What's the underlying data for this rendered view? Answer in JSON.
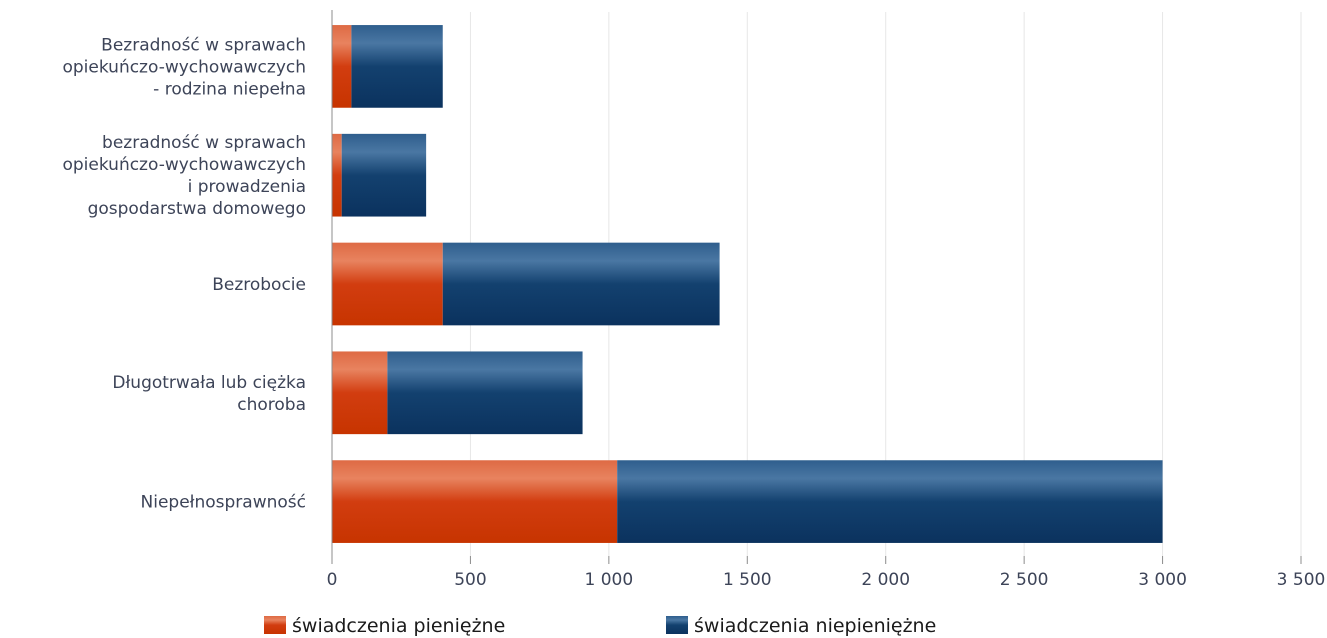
{
  "chart_data": {
    "type": "bar",
    "orientation": "horizontal",
    "stacked": true,
    "categories": [
      [
        "Bezradność w sprawach",
        "opiekuńczo-wychowawczych",
        "- rodzina niepełna"
      ],
      [
        "bezradność w sprawach",
        "opiekuńczo-wychowawczych",
        "i prowadzenia",
        "gospodarstwa domowego"
      ],
      [
        "Bezrobocie"
      ],
      [
        "Długotrwała lub ciężka",
        "choroba"
      ],
      [
        "Niepełnosprawność"
      ]
    ],
    "series": [
      {
        "name": "świadczenia pieniężne",
        "color": "#d03c10",
        "values": [
          70,
          35,
          400,
          200,
          1030
        ]
      },
      {
        "name": "świadczenia niepieniężne",
        "color": "#13416f",
        "values": [
          330,
          305,
          1000,
          705,
          1970
        ]
      }
    ],
    "xlim": [
      0,
      3500
    ],
    "xticks": [
      0,
      500,
      1000,
      1500,
      2000,
      2500,
      3000,
      3500
    ],
    "xtick_labels": [
      "0",
      "500",
      "1 000",
      "1 500",
      "2 000",
      "2 500",
      "3 000",
      "3 500"
    ],
    "grid": true,
    "legend_position": "bottom"
  }
}
